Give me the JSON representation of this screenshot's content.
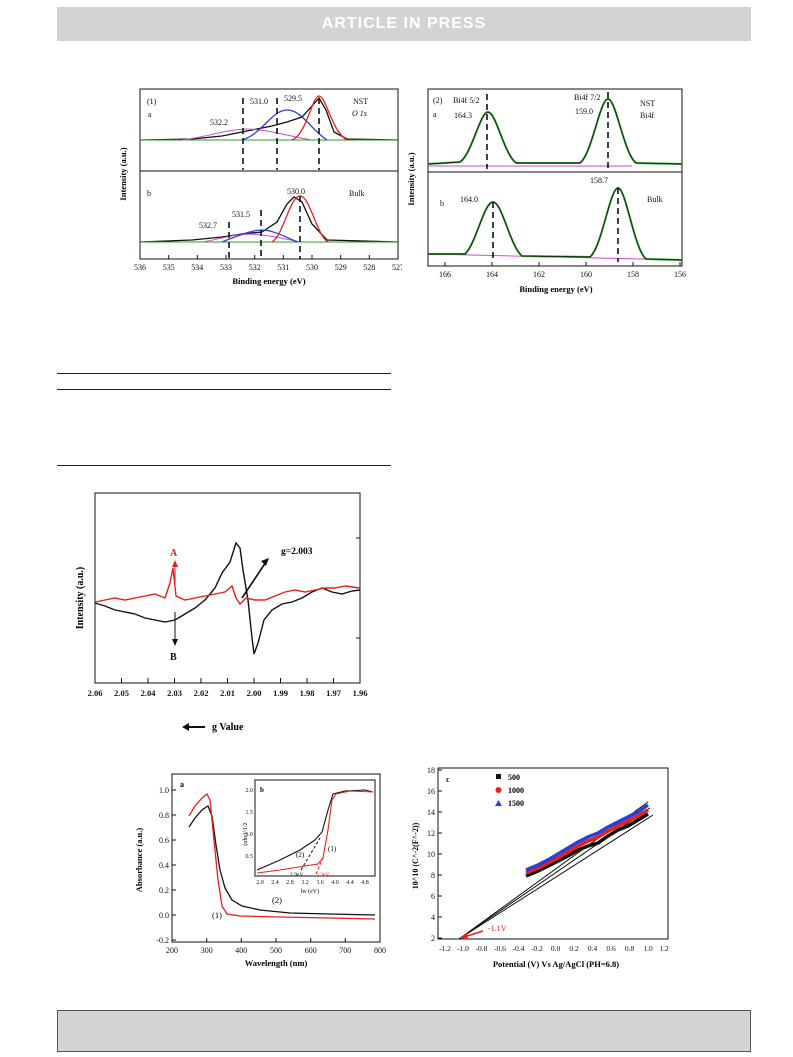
{
  "banner": {
    "text": "ARTICLE IN PRESS"
  },
  "xps": {
    "o1s": {
      "panel_label": "(1)",
      "sub_a": "a",
      "sub_b": "b",
      "title1": "NST",
      "title2": "O 1s",
      "bulk": "Bulk",
      "ylabel": "Intensity (a.u.)",
      "xlabel": "Binding energy (eV)",
      "xticks": [
        "536",
        "535",
        "534",
        "533",
        "532",
        "531",
        "530",
        "529",
        "528",
        "527"
      ],
      "peaks_a": [
        "532.2",
        "531.0",
        "529.5"
      ],
      "peaks_b": [
        "532.7",
        "531.5",
        "530.0"
      ]
    },
    "bi4f": {
      "panel_label": "(2)",
      "sub_a": "a",
      "sub_b": "b",
      "title1": "NST",
      "title2": "Bi4f",
      "bulk": "Bulk",
      "ylabel": "Intensity (a.u.)",
      "xlabel": "Binding energy (eV)",
      "xticks": [
        "166",
        "164",
        "162",
        "160",
        "158",
        "156"
      ],
      "peak_labels_a": [
        "Bi4f 5/2",
        "Bi4f 7/2"
      ],
      "peaks_a": [
        "164.3",
        "159.0"
      ],
      "peaks_b": [
        "164.0",
        "158.7"
      ]
    }
  },
  "epr": {
    "ylabel": "Intensity (a.u.)",
    "xlabel": "g Value",
    "label_a": "A",
    "label_b": "B",
    "annotation": "g=2.003",
    "xticks": [
      "2.06",
      "2.05",
      "2.04",
      "2.03",
      "2.02",
      "2.01",
      "2.00",
      "1.99",
      "1.98",
      "1.97",
      "1.96"
    ]
  },
  "uvvis": {
    "panel_label": "a",
    "inset_label": "b",
    "ylabel": "Absorbance (a.u.)",
    "xlabel": "Wavelength (nm)",
    "yticks": [
      "1.0",
      "0.8",
      "0.6",
      "0.4",
      "0.2",
      "0.0",
      "-0.2"
    ],
    "xticks": [
      "200",
      "300",
      "400",
      "500",
      "600",
      "700",
      "800"
    ],
    "curve1": "(1)",
    "curve2": "(2)",
    "inset": {
      "ylabel": "(αhν)^1/2",
      "xlabel": "hν (eV)",
      "yticks": [
        "2.0",
        "1.5",
        "1.0",
        "0.5"
      ],
      "xticks": [
        "2.0",
        "2.4",
        "2.8",
        "3.2",
        "3.6",
        "4.0",
        "4.4",
        "4.8"
      ],
      "curve1": "(1)",
      "curve2": "(2)",
      "gap_black": "2.9eV",
      "gap_red": "3.3eV"
    }
  },
  "mott": {
    "panel_label": "c",
    "ylabel": "10^10 (C^-2(F^-2))",
    "xlabel": "Potential (V) Vs Ag/AgCl (PH=6.8)",
    "yticks": [
      "18",
      "16",
      "14",
      "12",
      "10",
      "8",
      "6",
      "4",
      "2"
    ],
    "xticks": [
      "-1.2",
      "-1.0",
      "-0.8",
      "-0.6",
      "-0.4",
      "-0.2",
      "0.0",
      "0.2",
      "0.4",
      "0.6",
      "0.8",
      "1.0",
      "1.2"
    ],
    "legend": [
      "500",
      "1000",
      "1500"
    ],
    "annotation": "-1.1V"
  },
  "colors": {
    "black": "#111111",
    "red": "#e8201c",
    "blue": "#2b3fd6",
    "green": "#2e9a2e",
    "magenta": "#d24ad2",
    "banner": "#d3d3d3"
  }
}
